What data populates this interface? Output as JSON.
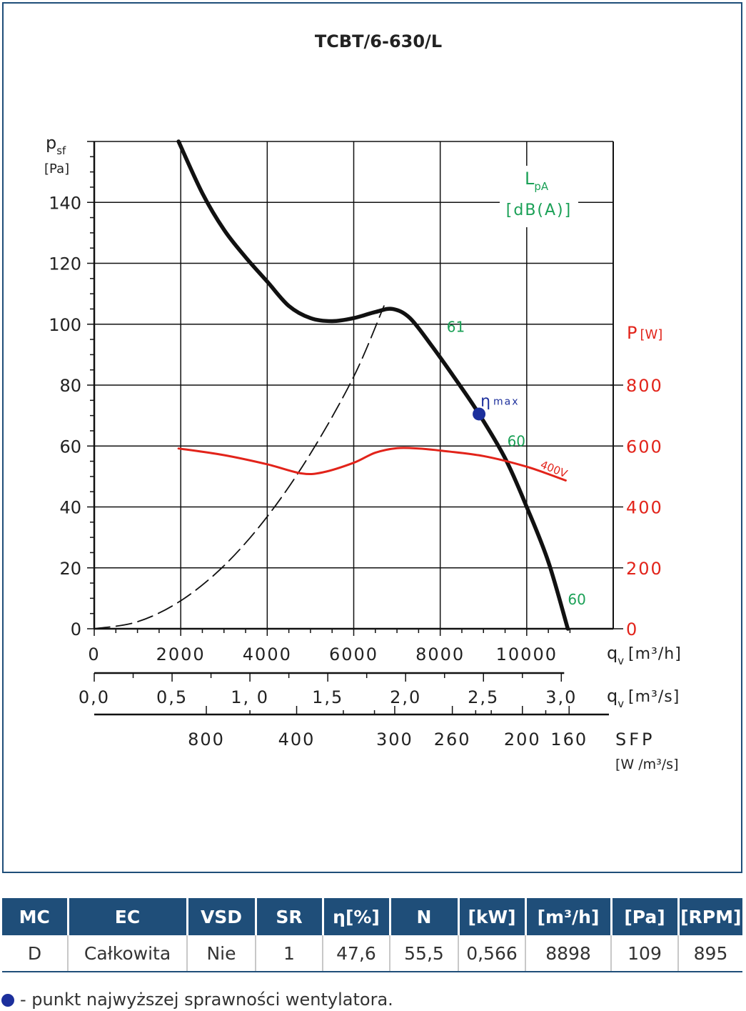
{
  "chart_data": {
    "type": "line",
    "title": "TCBT/6-630/L",
    "x": {
      "label": "q",
      "label_sub": "v",
      "unit": "[m³/h]",
      "range": [
        0,
        12000
      ],
      "ticks": [
        0,
        2000,
        4000,
        6000,
        8000,
        10000
      ],
      "tick_labels": [
        "0",
        "2000",
        "4000",
        "6000",
        "8000",
        "10000"
      ]
    },
    "x2": {
      "label": "q",
      "label_sub": "v",
      "unit": "[m³/s]",
      "ticks": [
        0.0,
        0.5,
        1.0,
        1.5,
        2.0,
        2.5,
        3.0
      ],
      "tick_labels": [
        "0,0",
        "0,5",
        "1, 0",
        "1,5",
        "2,0",
        "2,5",
        "3,0"
      ]
    },
    "sfp": {
      "label": "SFP",
      "unit": "[W /m³/s]",
      "tick_labels": [
        "800",
        "400",
        "300",
        "260",
        "200",
        "160"
      ],
      "tick_flow_m3s": [
        0.72,
        1.3,
        1.93,
        2.3,
        2.75,
        3.05
      ]
    },
    "y": {
      "label": "p",
      "label_sub": "sf",
      "unit": "[Pa]",
      "range": [
        0,
        160
      ],
      "ticks": [
        0,
        20,
        40,
        60,
        80,
        100,
        120,
        140
      ],
      "tick_labels": [
        "0",
        "20",
        "40",
        "60",
        "80",
        "100",
        "120",
        "140"
      ]
    },
    "y2": {
      "label": "P",
      "unit": "[W]",
      "range": [
        0,
        1600
      ],
      "ticks": [
        0,
        200,
        400,
        600,
        800
      ],
      "tick_labels": [
        "0",
        "200",
        "400",
        "600",
        "800"
      ],
      "color": "#e2231a"
    },
    "lpa": {
      "label": "L",
      "label_sub": "pA",
      "unit": "[dB(A)]",
      "color": "#1aa056"
    },
    "grid": true,
    "series": [
      {
        "name": "",
        "axis": "y",
        "color": "#111111",
        "style": "thick",
        "x": [
          1950,
          2500,
          3000,
          3500,
          4000,
          4500,
          5000,
          5500,
          6000,
          6500,
          6900,
          7300,
          7800,
          8400,
          8898,
          9500,
          10000,
          10500,
          10950
        ],
        "y": [
          160,
          143,
          131,
          122,
          114,
          106,
          102,
          101,
          102,
          104,
          105,
          102,
          93,
          81,
          70.5,
          56,
          40,
          22,
          0
        ]
      },
      {
        "name": "",
        "axis": "y",
        "color": "#111111",
        "style": "dashed",
        "x": [
          0,
          1000,
          2000,
          3000,
          4000,
          5000,
          6000,
          6700
        ],
        "y": [
          0,
          2.3,
          9.2,
          20.7,
          36.8,
          57.5,
          82.8,
          106
        ]
      },
      {
        "name": "400V",
        "axis": "y2",
        "color": "#e2231a",
        "style": "solid",
        "x": [
          1950,
          3000,
          4000,
          4800,
          5300,
          6000,
          6500,
          7000,
          7500,
          8000,
          9000,
          10000,
          10900
        ],
        "y": [
          592,
          570,
          540,
          510,
          514,
          545,
          578,
          593,
          592,
          585,
          567,
          532,
          487
        ]
      }
    ],
    "annotations": [
      {
        "text": "61",
        "x": 8150,
        "y": 97.5,
        "color": "#1aa056"
      },
      {
        "text": "60",
        "x": 9550,
        "y": 60,
        "color": "#1aa056"
      },
      {
        "text": "60",
        "x": 10950,
        "y": 8,
        "color": "#1aa056"
      },
      {
        "text": "400V",
        "x": 10300,
        "y": 53,
        "color": "#e2231a"
      }
    ],
    "eta_max": {
      "x": 8898,
      "y": 70.5,
      "label": "η",
      "label_sub": "max",
      "color": "#1c2f9c"
    }
  },
  "table": {
    "headers": [
      "MC",
      "EC",
      "VSD",
      "SR",
      "η[%]",
      "N",
      "[kW]",
      "[m³/h]",
      "[Pa]",
      "[RPM]"
    ],
    "row": [
      "D",
      "Całkowita",
      "Nie",
      "1",
      "47,6",
      "55,5",
      "0,566",
      "8898",
      "109",
      "895"
    ]
  },
  "legend_note": "- punkt najwyższej sprawności wentylatora."
}
